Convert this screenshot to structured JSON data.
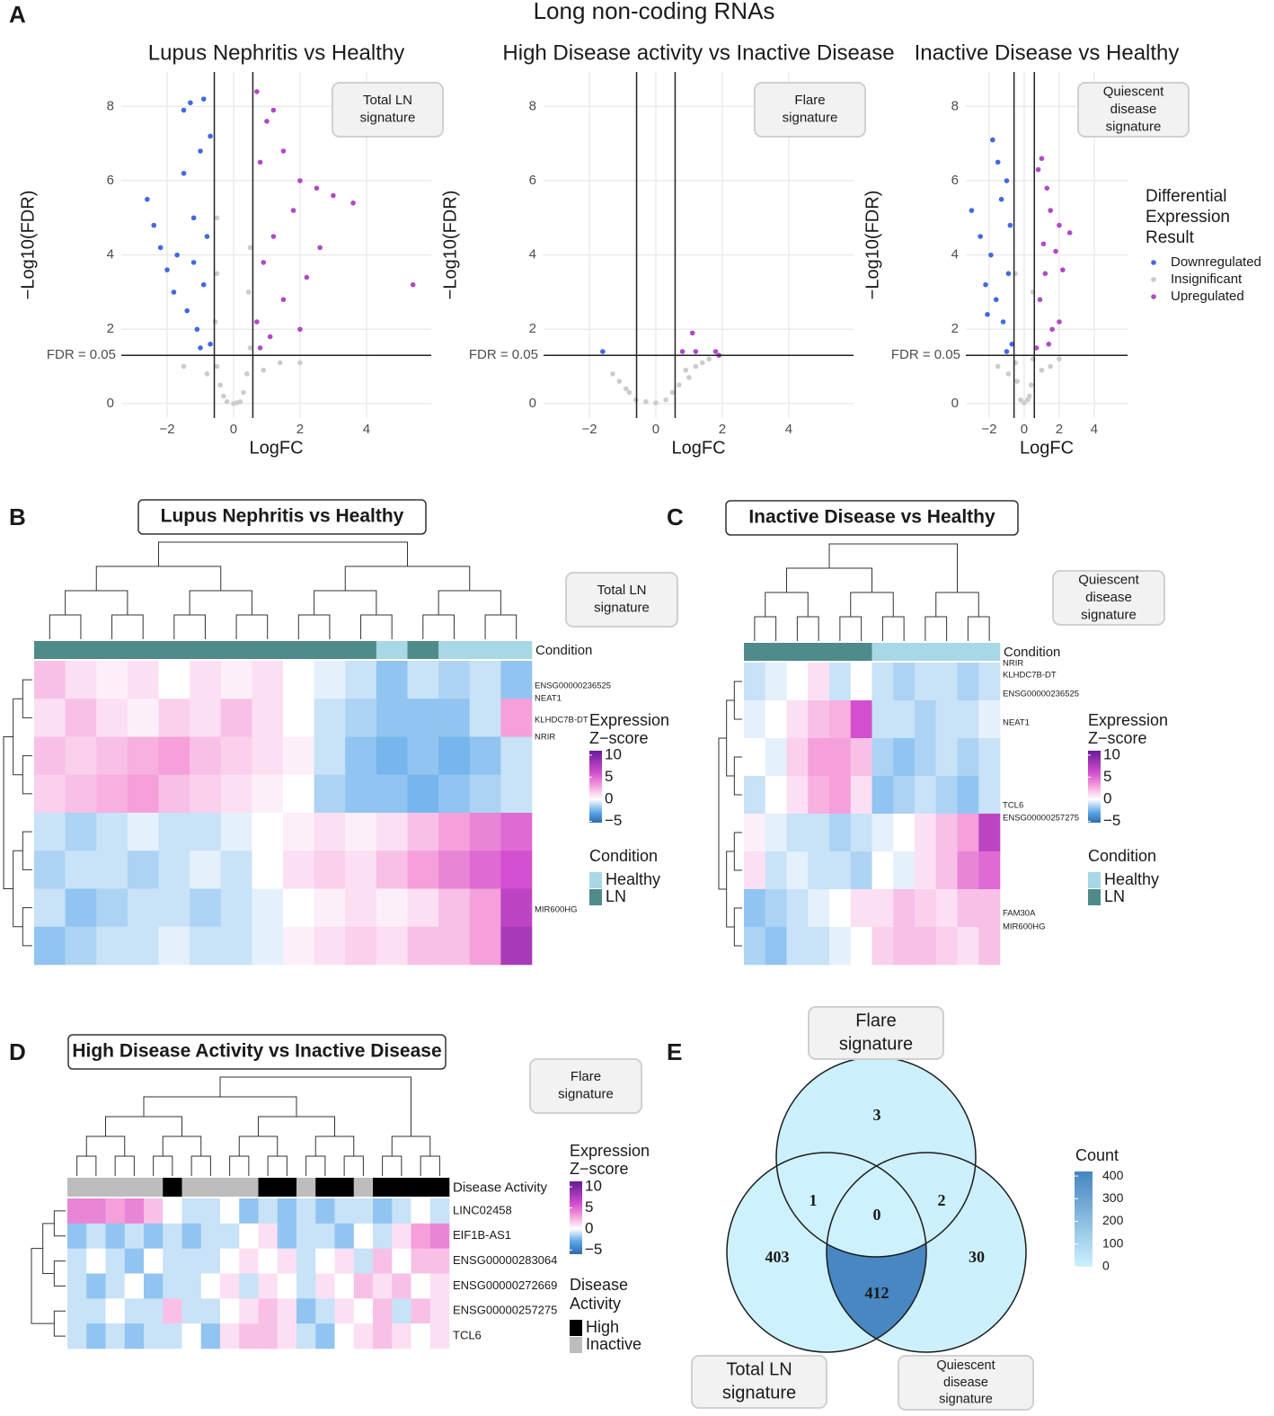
{
  "figure": {
    "title": "Long non-coding RNAs",
    "panels": [
      "A",
      "B",
      "C",
      "D",
      "E"
    ]
  },
  "chart_data": [
    {
      "type": "scatter",
      "title": "Lupus Nephritis vs Healthy",
      "xlabel": "LogFC",
      "ylabel": "−Log10(FDR)",
      "xlim": [
        -3.38,
        5.95
      ],
      "ylim": [
        -0.39,
        8.93
      ],
      "xticks": [
        {
          "value": -2,
          "label": "−2"
        },
        0,
        2,
        4
      ],
      "yticks": [
        0,
        2,
        4,
        6,
        8
      ],
      "hline": {
        "value": 1.3,
        "label": "FDR = 0.05"
      },
      "vlines": [
        -0.58,
        0.58
      ],
      "box": [
        "Total LN",
        "signature"
      ],
      "series": [
        {
          "color": "#4169e1",
          "x": [
            -2.6,
            -2.4,
            -2.2,
            -2.0,
            -1.8,
            -1.5,
            -1.3,
            -1.5,
            -1.2,
            -1.0,
            -0.9,
            -0.8,
            -1.4,
            -1.1,
            -0.9,
            -0.7,
            -1.7,
            -1.2,
            -0.7,
            -1.0
          ],
          "values": [
            5.5,
            4.8,
            4.2,
            3.6,
            3.0,
            7.9,
            8.1,
            6.2,
            5.0,
            6.8,
            8.2,
            4.5,
            2.5,
            2.0,
            3.2,
            1.6,
            4.0,
            3.8,
            7.2,
            1.5
          ]
        },
        {
          "color": "#cccccc",
          "x": [
            -0.5,
            -0.4,
            -0.3,
            -0.2,
            0,
            0.2,
            0.3,
            0.4,
            0.5,
            0.45,
            -0.5,
            -0.55,
            0.5,
            -1.5,
            1.4,
            -0.8,
            0.9,
            0.1,
            2.0,
            -0.5
          ],
          "values": [
            1.0,
            0.5,
            0.2,
            0.05,
            0,
            0.05,
            0.3,
            0.8,
            1.5,
            3.0,
            3.5,
            2.2,
            4.2,
            1.0,
            1.1,
            0.8,
            0.9,
            0.02,
            1.1,
            5.0
          ]
        },
        {
          "color": "#b04ac8",
          "x": [
            0.7,
            1.0,
            1.2,
            0.8,
            1.5,
            2.0,
            2.5,
            3.0,
            3.6,
            5.4,
            1.8,
            1.2,
            0.9,
            2.2,
            1.5,
            0.7,
            2.6,
            1.1,
            2.0,
            0.8
          ],
          "values": [
            8.4,
            7.6,
            7.9,
            6.5,
            6.8,
            6.0,
            5.8,
            5.6,
            5.4,
            3.2,
            5.2,
            4.5,
            3.8,
            3.4,
            2.8,
            2.2,
            4.2,
            1.8,
            2.0,
            1.5
          ]
        }
      ]
    },
    {
      "type": "scatter",
      "title": "High Disease activity vs Inactive Disease",
      "xlabel": "LogFC",
      "ylabel": "−Log10(FDR)",
      "xlim": [
        -3.38,
        5.95
      ],
      "ylim": [
        -0.39,
        8.93
      ],
      "xticks": [
        {
          "value": -2,
          "label": "−2"
        },
        0,
        2,
        4
      ],
      "yticks": [
        0,
        2,
        4,
        6,
        8
      ],
      "hline": {
        "value": 1.3,
        "label": "FDR = 0.05"
      },
      "vlines": [
        -0.58,
        0.58
      ],
      "box": [
        "Flare",
        "signature"
      ],
      "series": [
        {
          "color": "#4169e1",
          "x": [
            -1.6
          ],
          "values": [
            1.4
          ]
        },
        {
          "color": "#cccccc",
          "x": [
            -1.3,
            -1.1,
            -0.8,
            -0.6,
            -0.3,
            0,
            0.3,
            0.5,
            0.7,
            1.0,
            1.2,
            1.4,
            0.9,
            -0.9,
            1.6
          ],
          "values": [
            0.8,
            0.6,
            0.3,
            0.1,
            0.05,
            0.02,
            0.1,
            0.3,
            0.5,
            0.7,
            1.0,
            1.1,
            0.9,
            0.4,
            1.2
          ]
        },
        {
          "color": "#b04ac8",
          "x": [
            0.8,
            1.2,
            1.1,
            1.8,
            1.9
          ],
          "values": [
            1.4,
            1.4,
            1.9,
            1.4,
            1.3
          ]
        }
      ]
    },
    {
      "type": "scatter",
      "title": "Inactive Disease vs Healthy",
      "xlabel": "LogFC",
      "ylabel": "−Log10(FDR)",
      "xlim": [
        -3.33,
        5.9
      ],
      "ylim": [
        -0.39,
        8.93
      ],
      "xticks": [
        {
          "value": -2,
          "label": "−2"
        },
        0,
        2,
        4
      ],
      "yticks": [
        0,
        2,
        4,
        6,
        8
      ],
      "hline": {
        "value": 1.3,
        "label": "FDR = 0.05"
      },
      "vlines": [
        -0.58,
        0.58
      ],
      "box": [
        "Quiescent",
        "disease",
        "signature"
      ],
      "legend_title": [
        "Differential",
        "Expression",
        "Result"
      ],
      "series": [
        {
          "name": "Downregulated",
          "color": "#4169e1",
          "x": [
            -3.0,
            -2.5,
            -2.2,
            -1.8,
            -1.5,
            -1.3,
            -1.0,
            -0.8,
            -1.6,
            -1.2,
            -0.9,
            -0.7,
            -1.9,
            -1.0,
            -2.1
          ],
          "values": [
            5.2,
            4.5,
            3.2,
            7.1,
            6.5,
            5.5,
            6.0,
            4.8,
            2.8,
            2.2,
            3.5,
            1.6,
            4.0,
            1.4,
            2.4
          ]
        },
        {
          "name": "Insignificant",
          "color": "#cccccc",
          "x": [
            -0.5,
            -0.4,
            -0.2,
            0,
            0.2,
            0.4,
            0.5,
            -1.5,
            1.5,
            0.5,
            -0.5,
            1.0,
            -0.9,
            0.3,
            2.0
          ],
          "values": [
            1.1,
            0.6,
            0.1,
            0.02,
            0.1,
            0.5,
            1.2,
            1.0,
            1.0,
            3.0,
            3.5,
            0.9,
            0.8,
            0.2,
            1.2
          ]
        },
        {
          "name": "Upregulated",
          "color": "#b04ac8",
          "x": [
            0.8,
            1.0,
            1.3,
            1.5,
            2.0,
            2.6,
            1.8,
            1.2,
            0.9,
            2.2,
            1.6,
            0.7,
            2.0,
            1.1,
            1.4
          ],
          "values": [
            6.3,
            6.6,
            5.8,
            5.2,
            4.8,
            4.6,
            4.1,
            3.5,
            2.8,
            3.6,
            2.0,
            1.5,
            2.2,
            4.3,
            1.6
          ]
        }
      ]
    },
    {
      "type": "heatmap",
      "title": "Lupus Nephritis vs Healthy",
      "box": [
        "Total LN",
        "signature"
      ],
      "group_label": "Condition",
      "groups": [
        1,
        1,
        1,
        1,
        1,
        1,
        1,
        1,
        1,
        1,
        1,
        0,
        1,
        0,
        0,
        0
      ],
      "group_legend": {
        "title": [
          "Condition"
        ],
        "names": [
          "Healthy",
          "LN"
        ],
        "colors": [
          "#a8d8e6",
          "#4f8b8b"
        ]
      },
      "colorbar": {
        "title": [
          "Expression",
          "Z−score"
        ],
        "lim": [
          -5.3,
          11
        ],
        "ticks": [
          10,
          5,
          0,
          {
            "value": -5,
            "label": "−5"
          }
        ]
      },
      "colorscale": {
        "stops": [
          -6,
          -3,
          0,
          3,
          6,
          11
        ],
        "colors": [
          "#2e6aa8",
          "#5aa7e8",
          "#ffffff",
          "#f5a0da",
          "#d24fcf",
          "#6a1b9a"
        ]
      },
      "gene_labels": [
        "ENSG00000236525",
        "NEAT1",
        "KLHDC7B-DT",
        "NRIR",
        "MIR600HG"
      ],
      "values": [
        [
          2,
          1,
          0.5,
          1,
          0,
          1,
          0.5,
          1,
          0,
          -0.5,
          -1,
          -2,
          -1,
          -1.5,
          -1,
          -2
        ],
        [
          1,
          2,
          1,
          0.5,
          1.5,
          1,
          2,
          1,
          0,
          -1,
          -1.5,
          -2,
          -2,
          -2,
          -1,
          3
        ],
        [
          2,
          1.5,
          2,
          2.5,
          3,
          2,
          1.5,
          1,
          0.5,
          -1,
          -2,
          -2.5,
          -2,
          -2.5,
          -2,
          -1
        ],
        [
          1.5,
          2,
          2.5,
          3,
          2,
          1.5,
          1,
          0.5,
          0,
          -1.5,
          -2,
          -2,
          -2.5,
          -2,
          -1.5,
          -1
        ],
        [
          -1,
          -1.5,
          -1,
          -0.5,
          -1,
          -1,
          -0.5,
          0,
          0.5,
          1,
          0.5,
          1,
          2,
          3,
          4,
          5
        ],
        [
          -1.5,
          -1,
          -1,
          -1.5,
          -1,
          -0.5,
          -1,
          0,
          1,
          1.5,
          1,
          2,
          3,
          4,
          5,
          6
        ],
        [
          -1,
          -2,
          -1.5,
          -1,
          -1,
          -1.5,
          -1,
          -0.5,
          0,
          0.5,
          1,
          0.5,
          1,
          2,
          3,
          7
        ],
        [
          -2,
          -1.5,
          -1,
          -1,
          -0.5,
          -1,
          -1,
          -0.5,
          0.5,
          1,
          1.5,
          1,
          2,
          2,
          3,
          8
        ]
      ]
    },
    {
      "type": "heatmap",
      "title": "Inactive Disease vs Healthy",
      "box": [
        "Quiescent",
        "disease",
        "signature"
      ],
      "group_label": "Condition",
      "groups": [
        1,
        1,
        1,
        1,
        1,
        1,
        0,
        0,
        0,
        0,
        0,
        0
      ],
      "group_legend": {
        "title": [
          "Condition"
        ],
        "names": [
          "Healthy",
          "LN"
        ],
        "colors": [
          "#a8d8e6",
          "#4f8b8b"
        ]
      },
      "colorbar": {
        "title": [
          "Expression",
          "Z−score"
        ],
        "lim": [
          -5.3,
          11
        ],
        "ticks": [
          10,
          5,
          0,
          {
            "value": -5,
            "label": "−5"
          }
        ]
      },
      "colorscale": {
        "stops": [
          -6,
          -3,
          0,
          3,
          6,
          11
        ],
        "colors": [
          "#2e6aa8",
          "#5aa7e8",
          "#ffffff",
          "#f5a0da",
          "#d24fcf",
          "#6a1b9a"
        ]
      },
      "gene_labels": [
        "NRIR",
        "KLHDC7B-DT",
        "ENSG00000236525",
        "NEAT1",
        "TCL6",
        "ENSG00000257275",
        "FAM30A",
        "MIR600HG"
      ],
      "values": [
        [
          -1,
          -0.5,
          0,
          1,
          -1,
          0,
          -1,
          -1.5,
          -1,
          -1,
          -1.5,
          -1
        ],
        [
          -0.5,
          0,
          1,
          2,
          2.5,
          6,
          -1,
          -1,
          -1.5,
          -1,
          -1,
          -0.5
        ],
        [
          0,
          -0.5,
          1.5,
          3,
          3,
          2,
          -1.5,
          -2,
          -1.5,
          -1,
          -1.5,
          -1
        ],
        [
          -1,
          0,
          1,
          2.5,
          3,
          1,
          -2,
          -1.5,
          -1,
          -1.5,
          -2,
          -1
        ],
        [
          0.5,
          -0.5,
          -1,
          -1,
          -1.5,
          -1,
          -0.5,
          0,
          1,
          2,
          3,
          7
        ],
        [
          1,
          -1,
          -0.5,
          -1,
          -1,
          -1.5,
          0,
          -0.5,
          1,
          2,
          4,
          5
        ],
        [
          -2,
          -1.5,
          -1,
          -0.5,
          0,
          1,
          1,
          2,
          1.5,
          1,
          2,
          2
        ],
        [
          -1.5,
          -2,
          -1,
          -1,
          -0.5,
          0,
          1.5,
          2,
          2,
          1.5,
          1,
          2
        ]
      ]
    },
    {
      "type": "heatmap",
      "title": "High Disease Activity vs Inactive Disease",
      "box": [
        "Flare",
        "signature"
      ],
      "group_label": "Disease Activity",
      "groups": [
        0,
        0,
        0,
        0,
        0,
        1,
        0,
        0,
        0,
        0,
        1,
        1,
        0,
        1,
        1,
        0,
        1,
        1,
        1,
        1
      ],
      "group_legend": {
        "title": [
          "Disease",
          "Activity"
        ],
        "names": [
          "High",
          "Inactive"
        ],
        "colors": [
          "#bdbdbd",
          "#000000"
        ],
        "order": [
          1,
          0
        ]
      },
      "colorbar": {
        "title": [
          "Expression",
          "Z−score"
        ],
        "lim": [
          -6,
          11.3
        ],
        "ticks": [
          10,
          5,
          0,
          {
            "value": -5,
            "label": "−5"
          }
        ]
      },
      "colorscale": {
        "stops": [
          -6,
          -3,
          0,
          3,
          6,
          11
        ],
        "colors": [
          "#2e6aa8",
          "#5aa7e8",
          "#ffffff",
          "#f5a0da",
          "#d24fcf",
          "#6a1b9a"
        ]
      },
      "row_labels": [
        "LINC02458",
        "EIF1B-AS1",
        "ENSG00000283064",
        "ENSG00000272669",
        "ENSG00000257275",
        "TCL6"
      ],
      "values": [
        [
          4,
          4,
          3,
          4,
          2,
          0,
          -1,
          -1,
          0,
          -2,
          -1,
          -2,
          -1,
          -2,
          -1,
          -1,
          -2,
          -1,
          0,
          -1
        ],
        [
          -2,
          -1,
          -2,
          -1,
          -2,
          -1,
          -2,
          -1,
          -1,
          0,
          1,
          -2,
          -1,
          -1,
          -2,
          0,
          -1,
          1,
          3,
          4
        ],
        [
          -1,
          0,
          -1,
          -2,
          0,
          -1,
          -1,
          -1,
          0,
          1,
          0,
          1,
          -1,
          0,
          1,
          -1,
          2,
          0,
          2,
          2
        ],
        [
          -1,
          -2,
          -1,
          0,
          -2,
          -1,
          -1,
          0,
          1,
          -1,
          1,
          0,
          -1,
          1,
          0,
          2,
          1,
          2,
          0,
          1
        ],
        [
          -1,
          -1,
          0,
          -1,
          -1,
          2,
          -1,
          -1,
          0,
          1,
          2,
          1,
          -2,
          -1,
          1,
          0,
          2,
          -1,
          2,
          1
        ],
        [
          -1,
          -2,
          -1,
          -2,
          -1,
          -1,
          0,
          -2,
          1,
          2,
          2,
          1,
          -1,
          -2,
          0,
          1,
          2,
          1,
          0,
          1
        ]
      ]
    },
    {
      "type": "venn",
      "sets": [
        [
          "Flare",
          "signature"
        ],
        [
          "Total LN",
          "signature"
        ],
        [
          "Quiescent",
          "disease",
          "signature"
        ]
      ],
      "values": [
        3,
        403,
        30,
        1,
        2,
        412,
        0
      ],
      "colorbar": {
        "title": "Count",
        "lim": [
          0,
          420
        ],
        "ticks": [
          400,
          300,
          200,
          100,
          0
        ],
        "colors": [
          "#cdf1fd",
          "#4585c0"
        ]
      }
    }
  ]
}
